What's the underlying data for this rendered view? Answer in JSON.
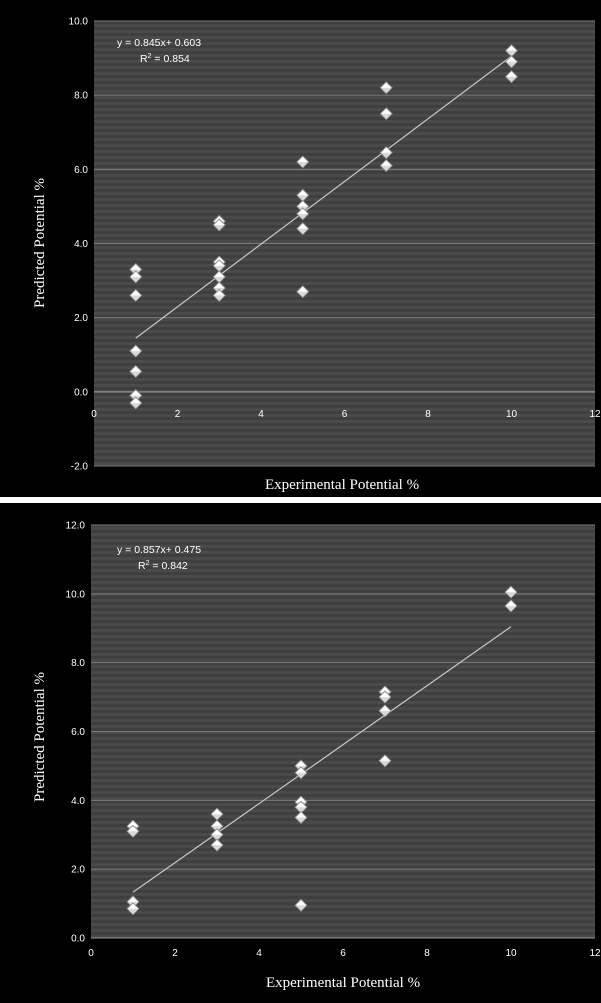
{
  "chart_data": [
    {
      "type": "scatter",
      "xlabel": "Experimental Potential %",
      "ylabel": "Predicted Potential %",
      "xlim": [
        0,
        12
      ],
      "ylim": [
        -2,
        10
      ],
      "x_ticks": [
        "0",
        "2",
        "4",
        "6",
        "8",
        "10",
        "12"
      ],
      "y_ticks": [
        "-2.0",
        "0.0",
        "2.0",
        "4.0",
        "6.0",
        "8.0",
        "10.0"
      ],
      "x_tick_values": [
        0,
        2,
        4,
        6,
        8,
        10,
        12
      ],
      "y_tick_values": [
        -2,
        0,
        2,
        4,
        6,
        8,
        10
      ],
      "grid": true,
      "equation": "y = 0.845x+ 0.603",
      "r2_label": "R",
      "r2_exp": "2",
      "r2_value": " = 0.854",
      "trendline": {
        "slope": 0.845,
        "intercept": 0.603,
        "x_range": [
          1,
          10
        ]
      },
      "points": [
        [
          1,
          3.3
        ],
        [
          1,
          3.1
        ],
        [
          1,
          2.6
        ],
        [
          1,
          1.1
        ],
        [
          1,
          0.55
        ],
        [
          1,
          -0.1
        ],
        [
          1,
          -0.3
        ],
        [
          3,
          4.6
        ],
        [
          3,
          4.5
        ],
        [
          3,
          3.5
        ],
        [
          3,
          3.4
        ],
        [
          3,
          3.1
        ],
        [
          3,
          2.8
        ],
        [
          3,
          2.6
        ],
        [
          5,
          6.2
        ],
        [
          5,
          5.3
        ],
        [
          5,
          5.0
        ],
        [
          5,
          4.8
        ],
        [
          5,
          4.4
        ],
        [
          5,
          2.7
        ],
        [
          7,
          8.2
        ],
        [
          7,
          7.5
        ],
        [
          7,
          6.45
        ],
        [
          7,
          6.1
        ],
        [
          10,
          9.2
        ],
        [
          10,
          8.9
        ],
        [
          10,
          8.5
        ]
      ]
    },
    {
      "type": "scatter",
      "xlabel": "Experimental Potential %",
      "ylabel": "Predicted Potential %",
      "xlim": [
        0,
        12
      ],
      "ylim": [
        0,
        12
      ],
      "x_ticks": [
        "0",
        "2",
        "4",
        "6",
        "8",
        "10",
        "12"
      ],
      "y_ticks": [
        "0.0",
        "2.0",
        "4.0",
        "6.0",
        "8.0",
        "10.0",
        "12.0"
      ],
      "x_tick_values": [
        0,
        2,
        4,
        6,
        8,
        10,
        12
      ],
      "y_tick_values": [
        0,
        2,
        4,
        6,
        8,
        10,
        12
      ],
      "grid": true,
      "equation": "y = 0.857x+ 0.475",
      "r2_label": "R",
      "r2_exp": "2",
      "r2_value": " = 0.842",
      "trendline": {
        "slope": 0.857,
        "intercept": 0.475,
        "x_range": [
          1,
          10
        ]
      },
      "points": [
        [
          1,
          3.25
        ],
        [
          1,
          3.1
        ],
        [
          1,
          1.05
        ],
        [
          1,
          0.85
        ],
        [
          3,
          3.6
        ],
        [
          3,
          3.25
        ],
        [
          3,
          3.0
        ],
        [
          3,
          2.7
        ],
        [
          5,
          5.0
        ],
        [
          5,
          4.8
        ],
        [
          5,
          3.95
        ],
        [
          5,
          3.8
        ],
        [
          5,
          3.5
        ],
        [
          5,
          0.95
        ],
        [
          7,
          7.15
        ],
        [
          7,
          7.0
        ],
        [
          7,
          6.6
        ],
        [
          7,
          5.15
        ],
        [
          10,
          10.05
        ],
        [
          10,
          9.65
        ]
      ]
    }
  ]
}
